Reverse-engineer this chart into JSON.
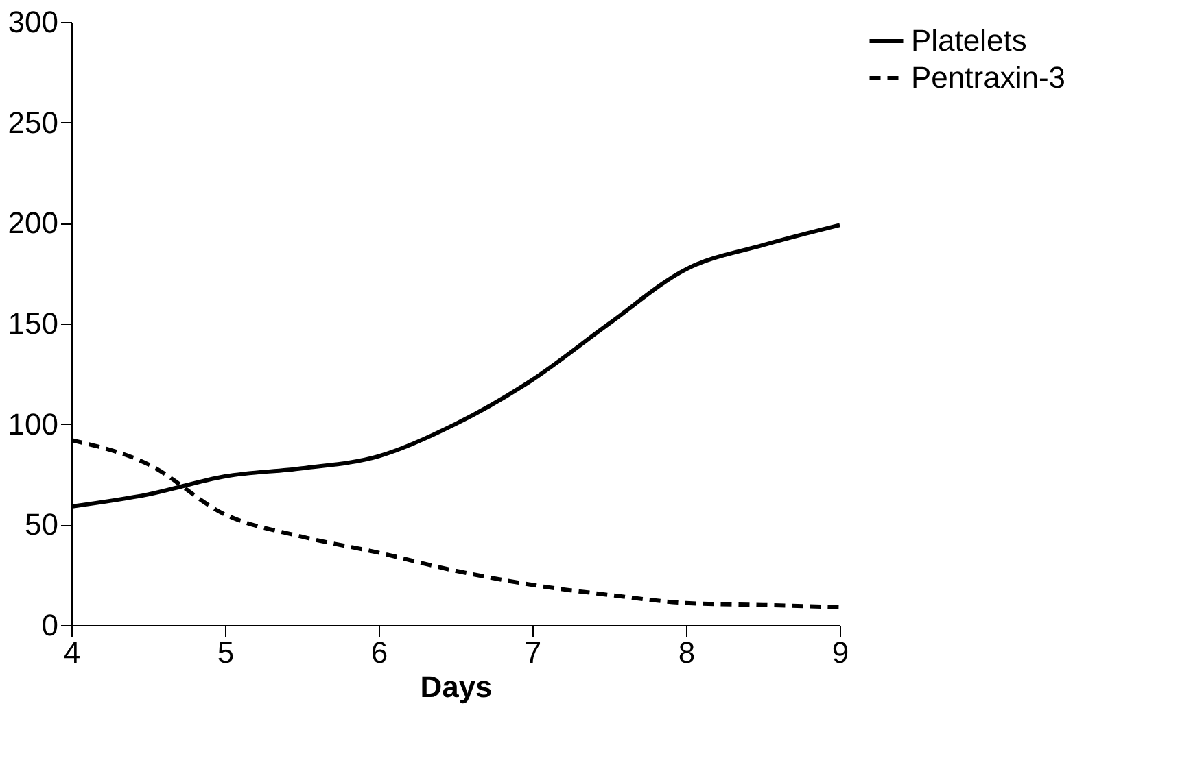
{
  "chart_data": {
    "type": "line",
    "xlabel": "Days",
    "x": [
      4,
      4.5,
      5,
      5.5,
      6,
      6.5,
      7,
      7.5,
      8,
      8.5,
      9
    ],
    "series": [
      {
        "name": "Platelets",
        "color": "#000000",
        "line_style": "solid",
        "values": [
          59,
          65,
          74,
          78,
          84,
          100,
          122,
          150,
          177,
          189,
          199
        ]
      },
      {
        "name": "Pentraxin-3",
        "color": "#000000",
        "line_style": "dashed",
        "values": [
          92,
          80,
          55,
          44,
          36,
          27,
          20,
          15,
          11,
          10,
          9
        ]
      }
    ],
    "xlim": [
      4,
      9
    ],
    "xticks": [
      4,
      5,
      6,
      7,
      8,
      9
    ],
    "ylim": [
      0,
      300
    ],
    "yticks": [
      0,
      50,
      100,
      150,
      200,
      250,
      300
    ],
    "grid": false,
    "legend": "right",
    "marker": "none"
  }
}
